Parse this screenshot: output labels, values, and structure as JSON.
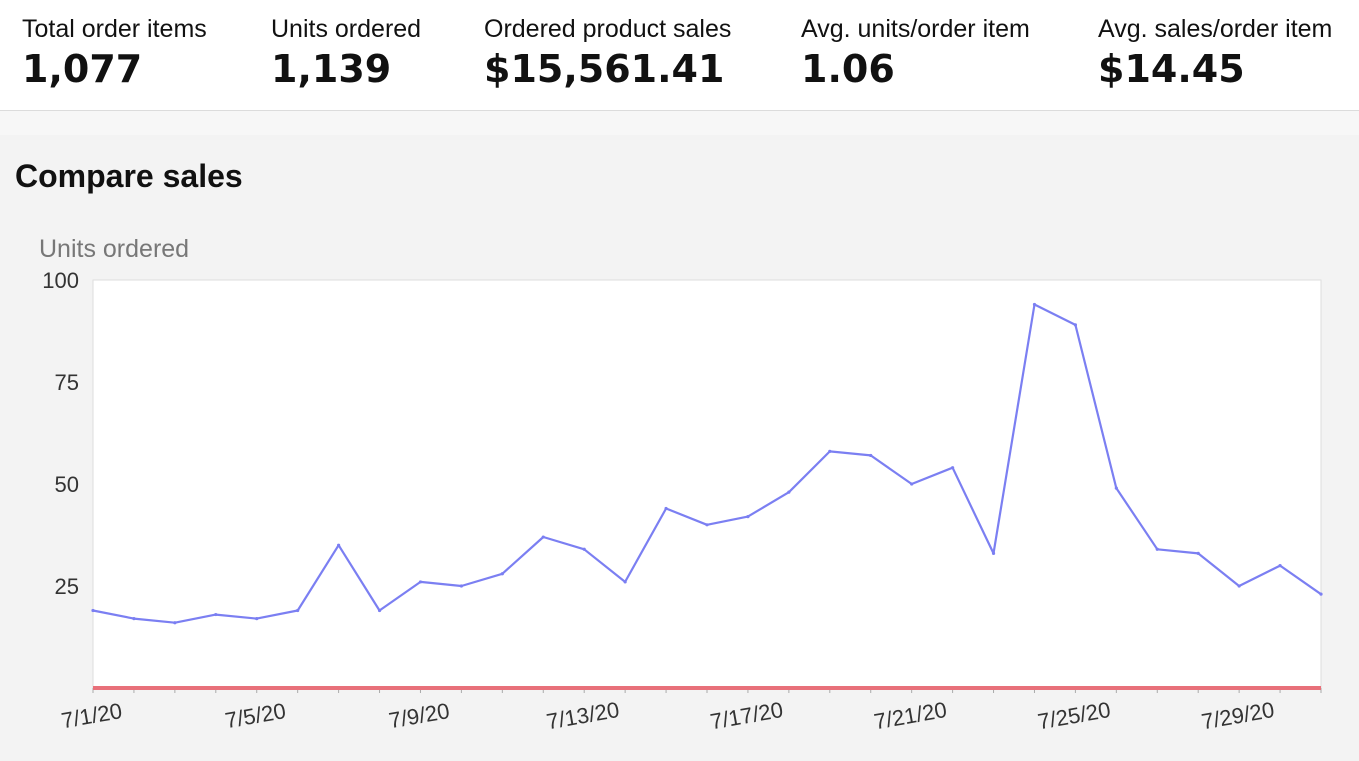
{
  "metrics": [
    {
      "label": "Total order items",
      "value": "1,077"
    },
    {
      "label": "Units ordered",
      "value": "1,139"
    },
    {
      "label": "Ordered product sales",
      "value": "$15,561.41"
    },
    {
      "label": "Avg. units/order item",
      "value": "1.06"
    },
    {
      "label": "Avg. sales/order item",
      "value": "$14.45"
    }
  ],
  "section": {
    "title": "Compare sales"
  },
  "chart_data": {
    "type": "line",
    "title": "",
    "ylabel": "Units ordered",
    "xlabel": "",
    "ylim": [
      0,
      100
    ],
    "y_ticks": [
      25,
      50,
      75,
      100
    ],
    "grid": false,
    "x": [
      "7/1/20",
      "7/2/20",
      "7/3/20",
      "7/4/20",
      "7/5/20",
      "7/6/20",
      "7/7/20",
      "7/8/20",
      "7/9/20",
      "7/10/20",
      "7/11/20",
      "7/12/20",
      "7/13/20",
      "7/14/20",
      "7/15/20",
      "7/16/20",
      "7/17/20",
      "7/18/20",
      "7/19/20",
      "7/20/20",
      "7/21/20",
      "7/22/20",
      "7/23/20",
      "7/24/20",
      "7/25/20",
      "7/26/20",
      "7/27/20",
      "7/28/20",
      "7/29/20",
      "7/30/20",
      "7/31/20"
    ],
    "x_tick_labels": [
      "7/1/20",
      "7/5/20",
      "7/9/20",
      "7/13/20",
      "7/17/20",
      "7/21/20",
      "7/25/20",
      "7/29/20"
    ],
    "series": [
      {
        "color": "#7b7ff2",
        "values": [
          19,
          17,
          16,
          18,
          17,
          19,
          35,
          19,
          26,
          25,
          28,
          37,
          34,
          26,
          44,
          40,
          42,
          48,
          58,
          57,
          50,
          54,
          33,
          94,
          89,
          49,
          34,
          33,
          25,
          30,
          23
        ]
      },
      {
        "color": "#e8707a",
        "values": [
          0,
          0,
          0,
          0,
          0,
          0,
          0,
          0,
          0,
          0,
          0,
          0,
          0,
          0,
          0,
          0,
          0,
          0,
          0,
          0,
          0,
          0,
          0,
          0,
          0,
          0,
          0,
          0,
          0,
          0,
          0
        ]
      }
    ]
  }
}
